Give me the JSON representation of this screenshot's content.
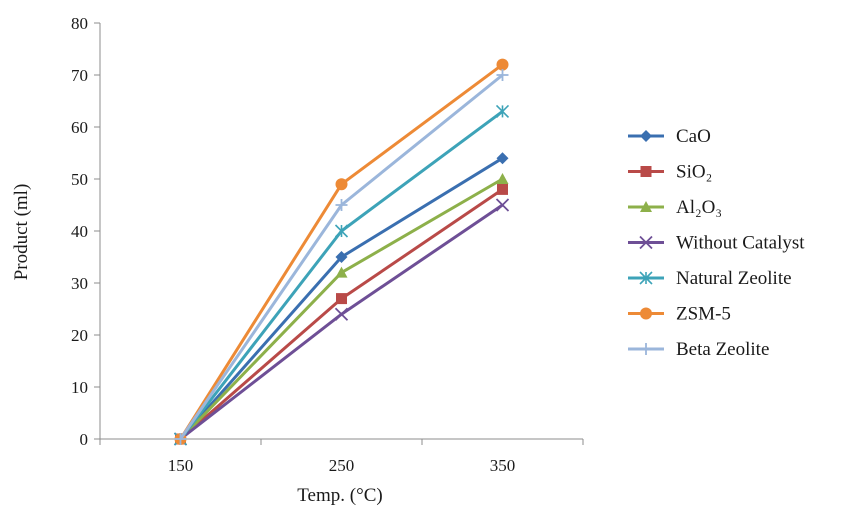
{
  "chart_data": {
    "type": "line",
    "categories": [
      "150",
      "250",
      "350"
    ],
    "xlabel": "Temp. (°C)",
    "ylabel": "Product (ml)",
    "ylim": [
      0,
      80
    ],
    "yticks": [
      "0",
      "10",
      "20",
      "30",
      "40",
      "50",
      "60",
      "70",
      "80"
    ],
    "grid": false,
    "legend_position": "right",
    "series": [
      {
        "name": "CaO",
        "values": [
          0,
          35,
          54
        ],
        "color": "#3a6fb0",
        "marker": "diamond"
      },
      {
        "name": "SiO₂",
        "values": [
          0,
          27,
          48
        ],
        "color": "#b94a48",
        "marker": "square"
      },
      {
        "name": "Al₂O₃",
        "values": [
          0,
          32,
          50
        ],
        "color": "#8db04a",
        "marker": "triangle"
      },
      {
        "name": "Without Catalyst",
        "values": [
          0,
          24,
          45
        ],
        "color": "#6e4f96",
        "marker": "x"
      },
      {
        "name": "Natural Zeolite",
        "values": [
          0,
          40,
          63
        ],
        "color": "#3da3b8",
        "marker": "asterisk"
      },
      {
        "name": "ZSM-5",
        "values": [
          0,
          49,
          72
        ],
        "color": "#ed8a36",
        "marker": "circle"
      },
      {
        "name": "Beta Zeolite",
        "values": [
          0,
          45,
          70
        ],
        "color": "#9bb6db",
        "marker": "plus"
      }
    ]
  }
}
